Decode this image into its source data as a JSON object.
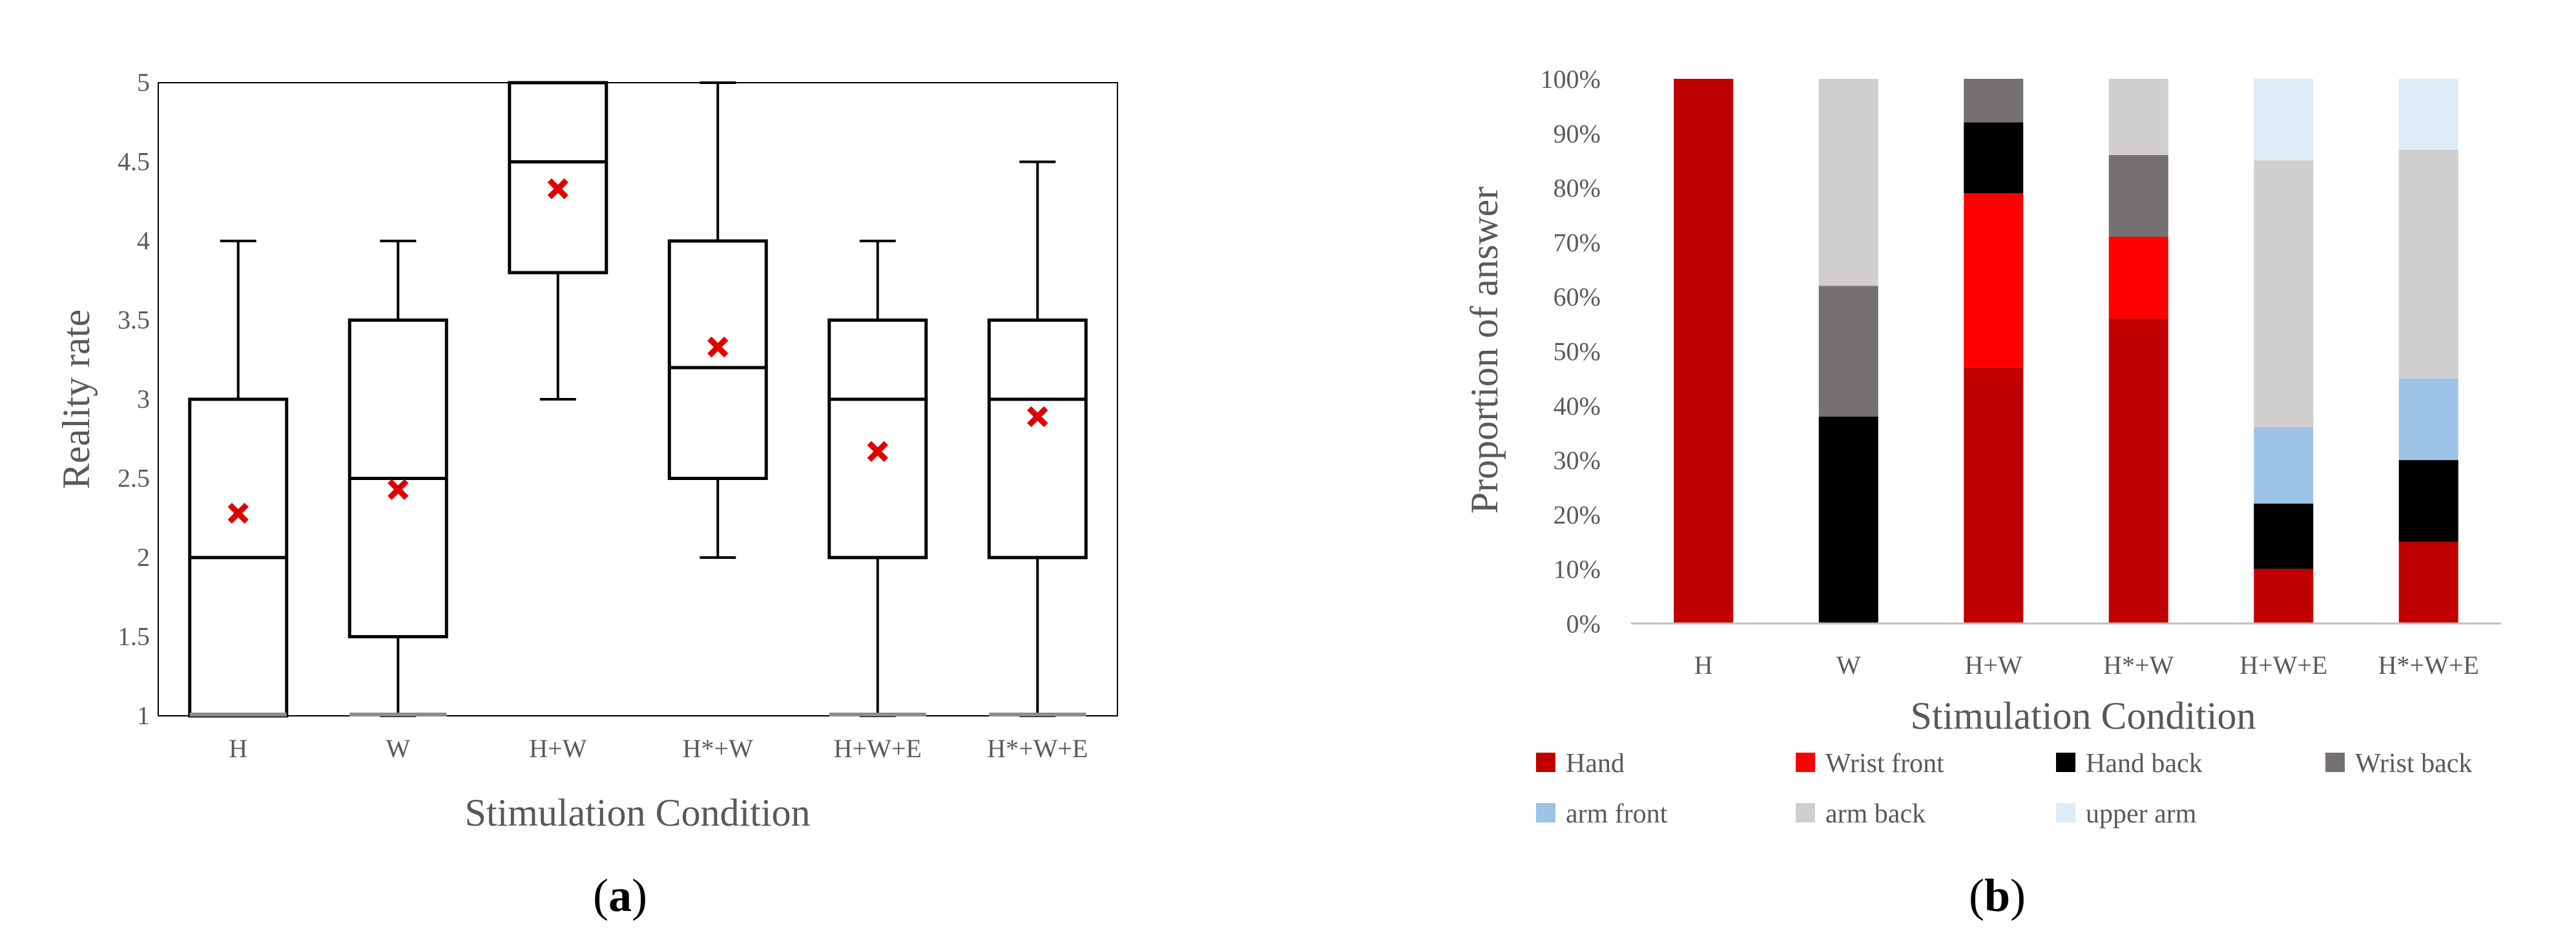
{
  "colors": {
    "box_stroke": "#000000",
    "mean_marker": "#e00000",
    "hand": "#c00000",
    "wrist_front": "#ff0000",
    "hand_back": "#000000",
    "wrist_back": "#767171",
    "arm_front": "#9dc3e6",
    "arm_back": "#d0cece",
    "upper_arm": "#deebf7"
  },
  "panels": {
    "a": {
      "label_open": "(",
      "label_letter": "a",
      "label_close": ")"
    },
    "b": {
      "label_open": "(",
      "label_letter": "b",
      "label_close": ")"
    }
  },
  "chart_data": [
    {
      "type": "box",
      "title": "",
      "xlabel": "Stimulation Condition",
      "ylabel": "Reality rate",
      "ylim": [
        1,
        5
      ],
      "yticks": [
        "1",
        "1.5",
        "2",
        "2.5",
        "3",
        "3.5",
        "4",
        "4.5",
        "5"
      ],
      "categories": [
        "H",
        "W",
        "H+W",
        "H*+W",
        "H+W+E",
        "H*+W+E"
      ],
      "boxes": [
        {
          "category": "H",
          "min": 1,
          "q1": 1,
          "median": 2,
          "q3": 3,
          "max": 4,
          "mean": 2.28
        },
        {
          "category": "W",
          "min": 1,
          "q1": 1.5,
          "median": 2.5,
          "q3": 3.5,
          "max": 4,
          "mean": 2.43
        },
        {
          "category": "H+W",
          "min": 3,
          "q1": 3.8,
          "median": 4.5,
          "q3": 5,
          "max": 5,
          "mean": 4.33
        },
        {
          "category": "H*+W",
          "min": 2,
          "q1": 2.5,
          "median": 3.2,
          "q3": 4,
          "max": 5,
          "mean": 3.33
        },
        {
          "category": "H+W+E",
          "min": 1,
          "q1": 2,
          "median": 3,
          "q3": 3.5,
          "max": 4,
          "mean": 2.67
        },
        {
          "category": "H*+W+E",
          "min": 1,
          "q1": 2,
          "median": 3,
          "q3": 3.5,
          "max": 4.5,
          "mean": 2.89
        }
      ],
      "grid": false,
      "legend": "none"
    },
    {
      "type": "bar",
      "stacked": true,
      "title": "",
      "xlabel": "Stimulation Condition",
      "ylabel": "Proportion of answer",
      "ylim": [
        0,
        100
      ],
      "yticks": [
        "0%",
        "10%",
        "20%",
        "30%",
        "40%",
        "50%",
        "60%",
        "70%",
        "80%",
        "90%",
        "100%"
      ],
      "categories": [
        "H",
        "W",
        "H+W",
        "H*+W",
        "H+W+E",
        "H*+W+E"
      ],
      "series": [
        {
          "name": "Hand",
          "color_key": "hand",
          "values": [
            100,
            0,
            47,
            56,
            10,
            15
          ]
        },
        {
          "name": "Wrist front",
          "color_key": "wrist_front",
          "values": [
            0,
            0,
            32,
            15,
            0,
            0
          ]
        },
        {
          "name": "Hand back",
          "color_key": "hand_back",
          "values": [
            0,
            38,
            13,
            0,
            12,
            15
          ]
        },
        {
          "name": "Wrist back",
          "color_key": "wrist_back",
          "values": [
            0,
            24,
            8,
            15,
            0,
            0
          ]
        },
        {
          "name": "arm front",
          "color_key": "arm_front",
          "values": [
            0,
            0,
            0,
            0,
            14,
            15
          ]
        },
        {
          "name": "arm back",
          "color_key": "arm_back",
          "values": [
            0,
            38,
            0,
            14,
            49,
            42
          ]
        },
        {
          "name": "upper arm",
          "color_key": "upper_arm",
          "values": [
            0,
            0,
            0,
            0,
            15,
            13
          ]
        }
      ],
      "grid": false,
      "legend": "bottom"
    }
  ]
}
